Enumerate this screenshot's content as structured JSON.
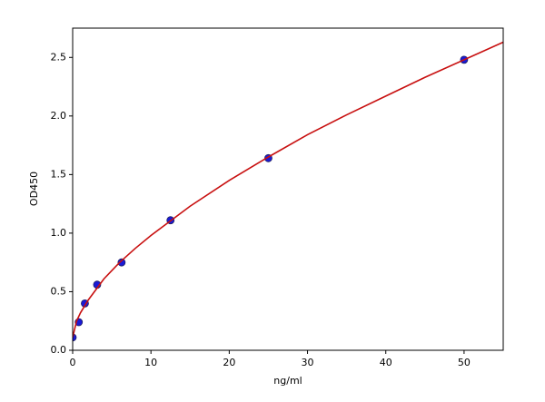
{
  "chart_data": {
    "type": "scatter",
    "x_label": "ng/ml",
    "y_label": "OD450",
    "xlim": [
      0,
      55
    ],
    "ylim": [
      0,
      2.75
    ],
    "xticks": [
      0,
      10,
      20,
      30,
      40,
      50
    ],
    "yticks": [
      {
        "value": 0,
        "label": "0.0"
      },
      0.5,
      {
        "value": 1,
        "label": "1.0"
      },
      1.5,
      {
        "value": 2,
        "label": "2.0"
      },
      2.5
    ],
    "grid": false,
    "series": [
      {
        "style": "markers",
        "color": "#1a1ad6",
        "x": [
          0,
          0.78,
          1.56,
          3.125,
          6.25,
          12.5,
          25,
          50
        ],
        "values": [
          0.11,
          0.24,
          0.4,
          0.56,
          0.75,
          1.11,
          1.64,
          2.48
        ]
      },
      {
        "style": "line",
        "color": "#c81010",
        "x": [
          0,
          0.5,
          1,
          2,
          4,
          6,
          8,
          10,
          15,
          20,
          25,
          30,
          35,
          40,
          45,
          50,
          55
        ],
        "values": [
          0.11,
          0.25,
          0.32,
          0.43,
          0.61,
          0.75,
          0.87,
          0.98,
          1.23,
          1.45,
          1.65,
          1.84,
          2.01,
          2.17,
          2.33,
          2.48,
          2.63
        ]
      }
    ]
  }
}
